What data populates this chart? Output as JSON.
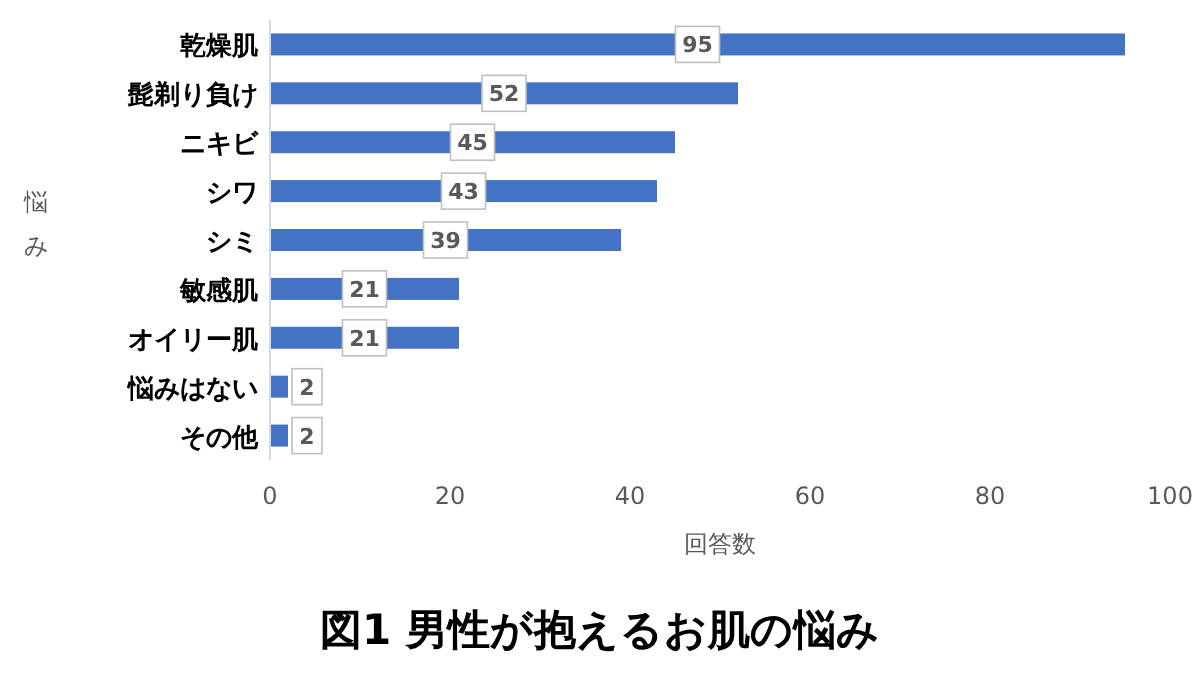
{
  "chart_data": {
    "type": "bar",
    "orientation": "horizontal",
    "title": "図1 男性が抱えるお肌の悩み",
    "xlabel": "回答数",
    "ylabel": "悩み",
    "categories": [
      "乾燥肌",
      "髭剃り負け",
      "ニキビ",
      "シワ",
      "シミ",
      "敏感肌",
      "オイリー肌",
      "悩みはない",
      "その他"
    ],
    "values": [
      95,
      52,
      45,
      43,
      39,
      21,
      21,
      2,
      2
    ],
    "color": "#4472c4",
    "data_labels": true,
    "xlim": [
      0,
      100
    ],
    "xticks": [
      0,
      20,
      40,
      60,
      80,
      100
    ],
    "grid": false
  }
}
